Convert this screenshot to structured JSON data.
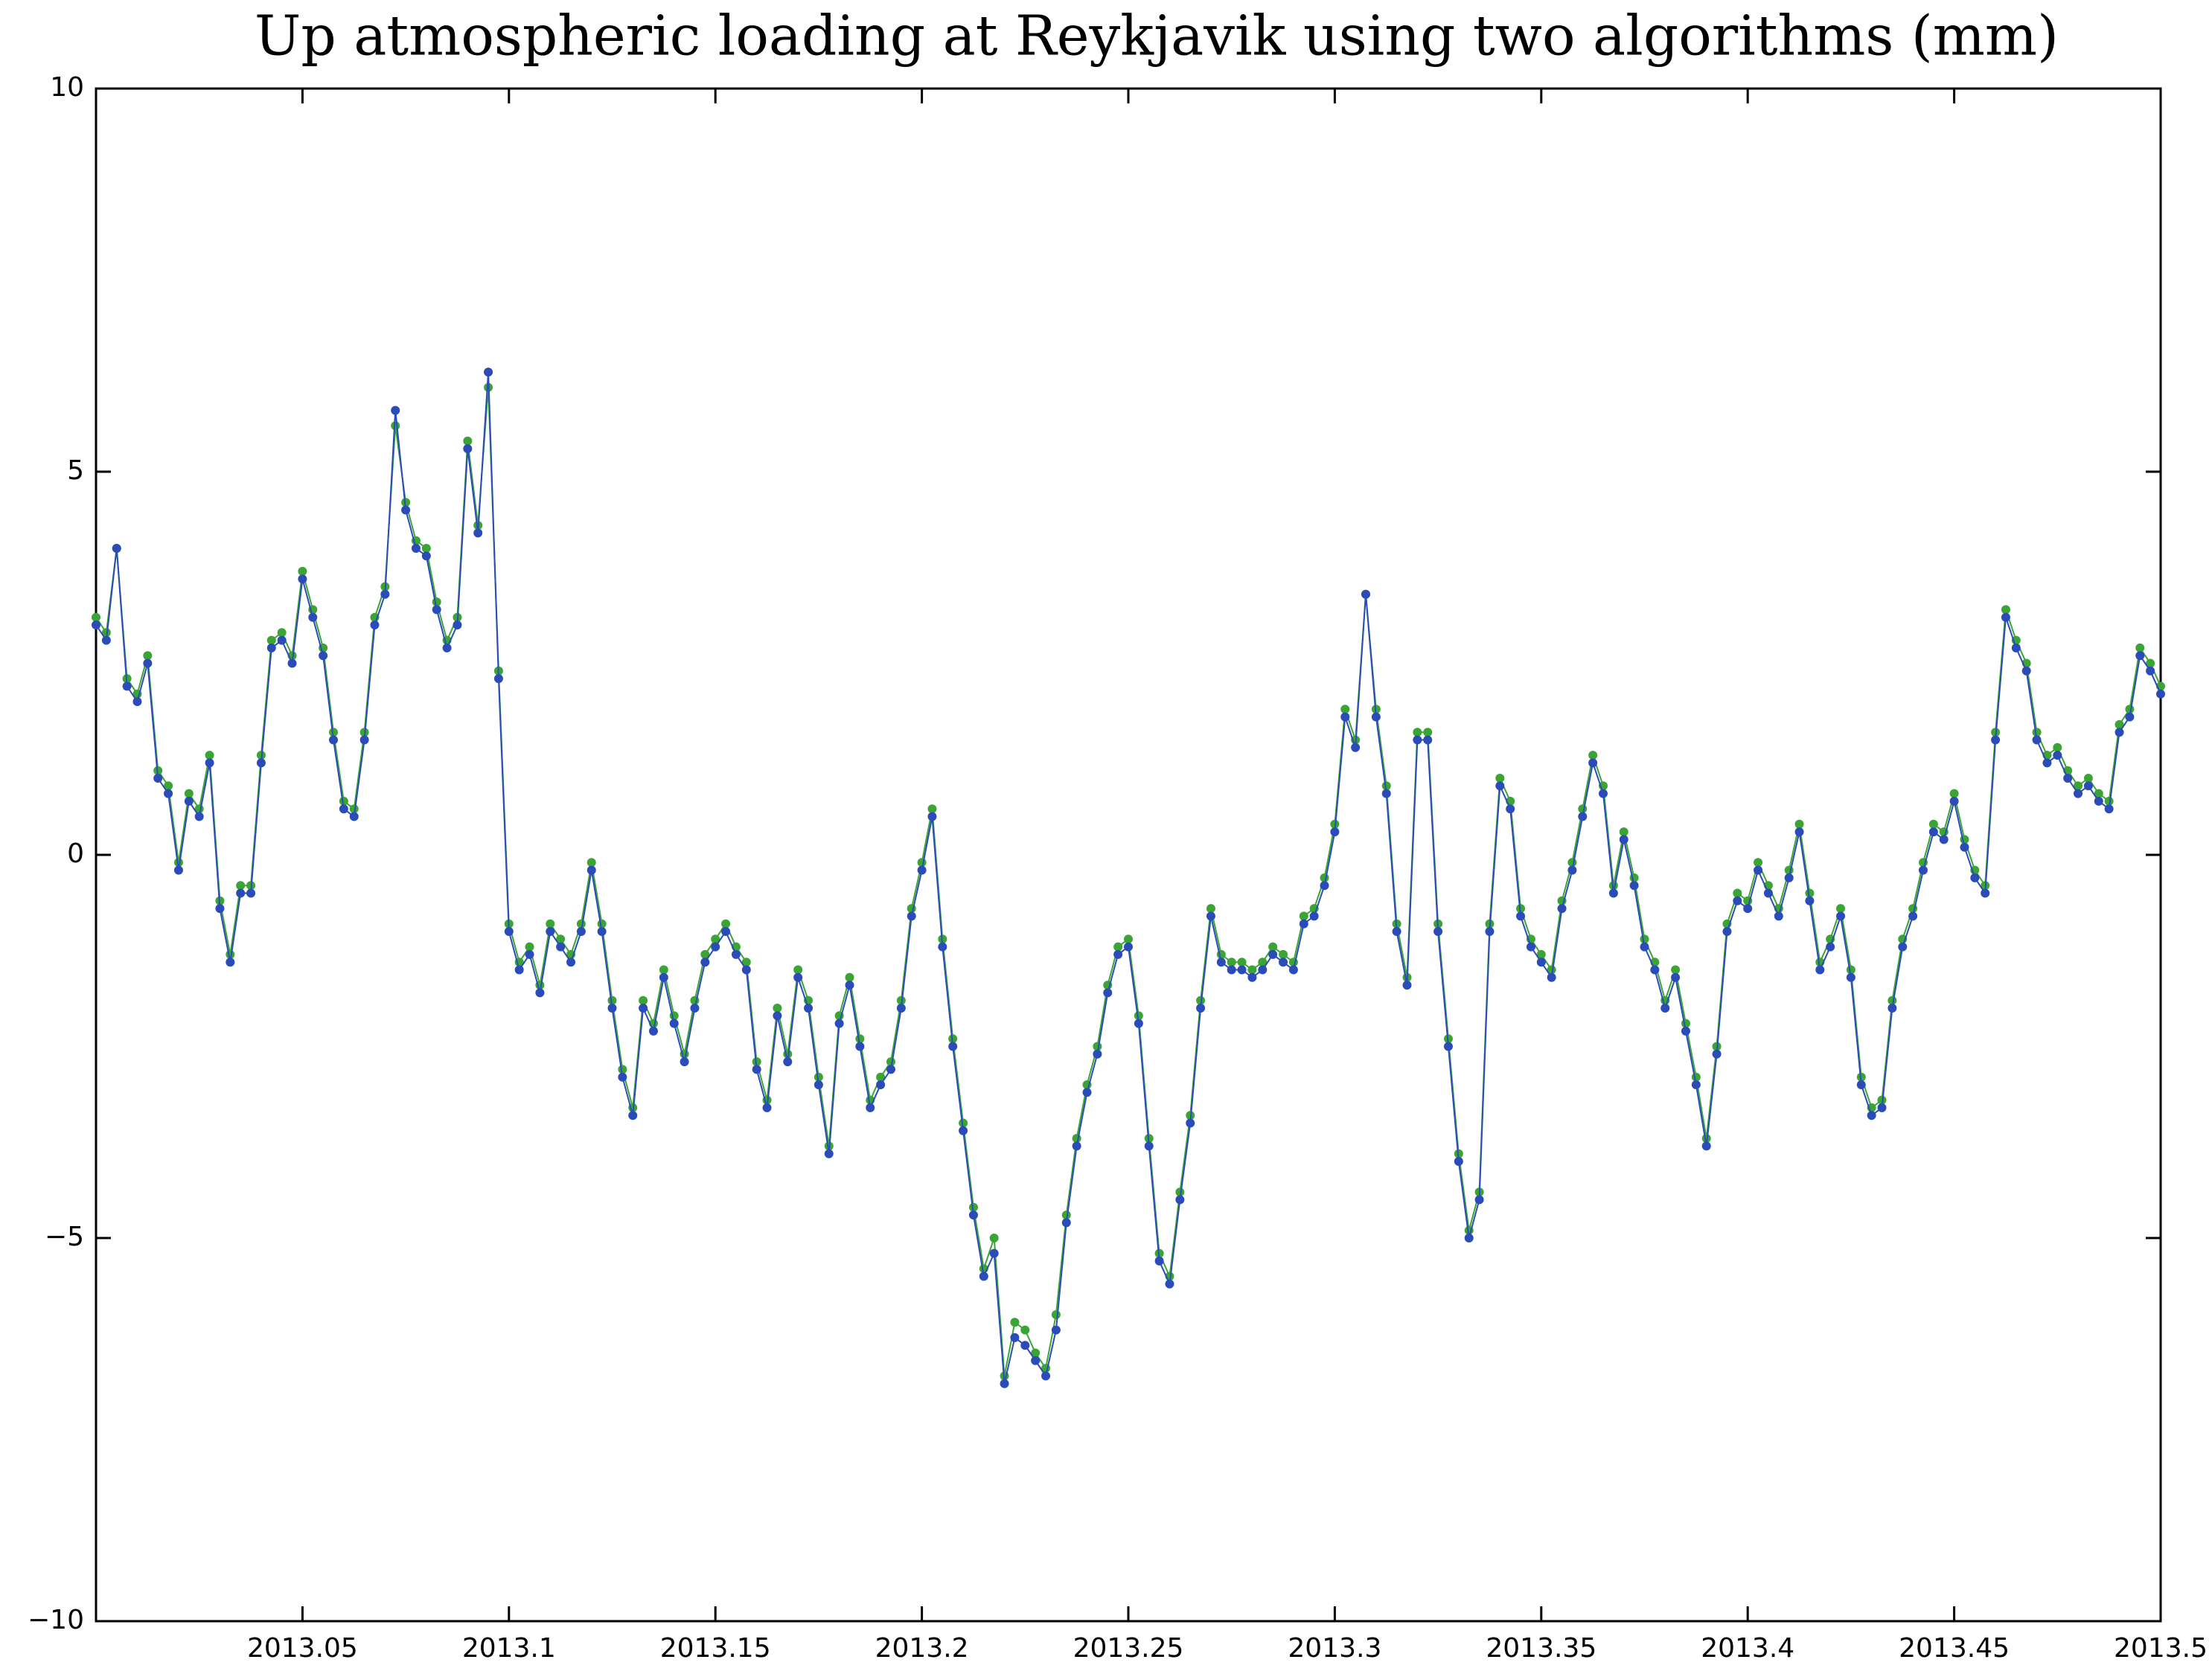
{
  "chart_data": {
    "type": "line",
    "title": "Up atmospheric loading at Reykjavik using two algorithms (mm)",
    "x": [
      2013,
      2013.0025,
      2013.005,
      2013.0075,
      2013.01,
      2013.0125,
      2013.015,
      2013.0175,
      2013.02,
      2013.0225,
      2013.025,
      2013.0275,
      2013.03,
      2013.0325,
      2013.035,
      2013.0375,
      2013.04,
      2013.0425,
      2013.045,
      2013.0475,
      2013.05,
      2013.0525,
      2013.055,
      2013.0575,
      2013.06,
      2013.0625,
      2013.065,
      2013.0675,
      2013.07,
      2013.0725,
      2013.075,
      2013.0775,
      2013.08,
      2013.0825,
      2013.085,
      2013.0875,
      2013.09,
      2013.0925,
      2013.095,
      2013.0975,
      2013.1,
      2013.1025,
      2013.105,
      2013.1075,
      2013.11,
      2013.1125,
      2013.115,
      2013.1175,
      2013.12,
      2013.1225,
      2013.125,
      2013.1275,
      2013.13,
      2013.1325,
      2013.135,
      2013.1375,
      2013.14,
      2013.1425,
      2013.145,
      2013.1475,
      2013.15,
      2013.1525,
      2013.155,
      2013.1575,
      2013.16,
      2013.1625,
      2013.165,
      2013.1675,
      2013.17,
      2013.1725,
      2013.175,
      2013.1775,
      2013.18,
      2013.1825,
      2013.185,
      2013.1875,
      2013.19,
      2013.1925,
      2013.195,
      2013.1975,
      2013.2,
      2013.2025,
      2013.205,
      2013.2075,
      2013.21,
      2013.2125,
      2013.215,
      2013.2175,
      2013.22,
      2013.2225,
      2013.225,
      2013.2275,
      2013.23,
      2013.2325,
      2013.235,
      2013.2375,
      2013.24,
      2013.2425,
      2013.245,
      2013.2475,
      2013.25,
      2013.2525,
      2013.255,
      2013.2575,
      2013.26,
      2013.2625,
      2013.265,
      2013.2675,
      2013.27,
      2013.2725,
      2013.275,
      2013.2775,
      2013.28,
      2013.2825,
      2013.285,
      2013.2875,
      2013.29,
      2013.2925,
      2013.295,
      2013.2975,
      2013.3,
      2013.3025,
      2013.305,
      2013.3075,
      2013.31,
      2013.3125,
      2013.315,
      2013.3175,
      2013.32,
      2013.3225,
      2013.325,
      2013.3275,
      2013.33,
      2013.3325,
      2013.335,
      2013.3375,
      2013.34,
      2013.3425,
      2013.345,
      2013.3475,
      2013.35,
      2013.3525,
      2013.355,
      2013.3575,
      2013.36,
      2013.3625,
      2013.365,
      2013.3675,
      2013.37,
      2013.3725,
      2013.375,
      2013.3775,
      2013.38,
      2013.3825,
      2013.385,
      2013.3875,
      2013.39,
      2013.3925,
      2013.395,
      2013.3975,
      2013.4,
      2013.4025,
      2013.405,
      2013.4075,
      2013.41,
      2013.4125,
      2013.415,
      2013.4175,
      2013.42,
      2013.4225,
      2013.425,
      2013.4275,
      2013.43,
      2013.4325,
      2013.435,
      2013.4375,
      2013.44,
      2013.4425,
      2013.445,
      2013.4475,
      2013.45,
      2013.4525,
      2013.455,
      2013.4575,
      2013.46,
      2013.4625,
      2013.465,
      2013.4675,
      2013.47,
      2013.4725,
      2013.475,
      2013.4775,
      2013.48,
      2013.4825,
      2013.485,
      2013.4875,
      2013.49,
      2013.4925,
      2013.495,
      2013.4975,
      2013.5
    ],
    "series": [
      {
        "color": "#3aa535",
        "values": [
          3.1,
          2.9,
          4.0,
          2.3,
          2.1,
          2.6,
          1.1,
          0.9,
          -0.1,
          0.8,
          0.6,
          1.3,
          -0.6,
          -1.3,
          -0.4,
          -0.4,
          1.3,
          2.8,
          2.9,
          2.6,
          3.7,
          3.2,
          2.7,
          1.6,
          0.7,
          0.6,
          1.6,
          3.1,
          3.5,
          5.6,
          4.6,
          4.1,
          4.0,
          3.3,
          2.8,
          3.1,
          5.4,
          4.3,
          6.1,
          2.4,
          -0.9,
          -1.4,
          -1.2,
          -1.7,
          -0.9,
          -1.1,
          -1.3,
          -0.9,
          -0.1,
          -0.9,
          -1.9,
          -2.8,
          -3.3,
          -1.9,
          -2.2,
          -1.5,
          -2.1,
          -2.6,
          -1.9,
          -1.3,
          -1.1,
          -0.9,
          -1.2,
          -1.4,
          -2.7,
          -3.2,
          -2.0,
          -2.6,
          -1.5,
          -1.9,
          -2.9,
          -3.8,
          -2.1,
          -1.6,
          -2.4,
          -3.2,
          -2.9,
          -2.7,
          -1.9,
          -0.7,
          -0.1,
          0.6,
          -1.1,
          -2.4,
          -3.5,
          -4.6,
          -5.4,
          -5.0,
          -6.8,
          -6.1,
          -6.2,
          -6.5,
          -6.7,
          -6.0,
          -4.7,
          -3.7,
          -3.0,
          -2.5,
          -1.7,
          -1.2,
          -1.1,
          -2.1,
          -3.7,
          -5.2,
          -5.5,
          -4.4,
          -3.4,
          -1.9,
          -0.7,
          -1.3,
          -1.4,
          -1.4,
          -1.5,
          -1.4,
          -1.2,
          -1.3,
          -1.4,
          -0.8,
          -0.7,
          -0.3,
          0.4,
          1.9,
          1.5,
          3.4,
          1.9,
          0.9,
          -0.9,
          -1.6,
          1.6,
          1.6,
          -0.9,
          -2.4,
          -3.9,
          -4.9,
          -4.4,
          -0.9,
          1.0,
          0.7,
          -0.7,
          -1.1,
          -1.3,
          -1.5,
          -0.6,
          -0.1,
          0.6,
          1.3,
          0.9,
          -0.4,
          0.3,
          -0.3,
          -1.1,
          -1.4,
          -1.9,
          -1.5,
          -2.2,
          -2.9,
          -3.7,
          -2.5,
          -0.9,
          -0.5,
          -0.6,
          -0.1,
          -0.4,
          -0.7,
          -0.2,
          0.4,
          -0.5,
          -1.4,
          -1.1,
          -0.7,
          -1.5,
          -2.9,
          -3.3,
          -3.2,
          -1.9,
          -1.1,
          -0.7,
          -0.1,
          0.4,
          0.3,
          0.8,
          0.2,
          -0.2,
          -0.4,
          1.6,
          3.2,
          2.8,
          2.5,
          1.6,
          1.3,
          1.4,
          1.1,
          0.9,
          1.0,
          0.8,
          0.7,
          1.7,
          1.9,
          2.7,
          2.5,
          2.2
        ]
      },
      {
        "color": "#2b4bb8",
        "values": [
          3.0,
          2.8,
          4.0,
          2.2,
          2.0,
          2.5,
          1.0,
          0.8,
          -0.2,
          0.7,
          0.5,
          1.2,
          -0.7,
          -1.4,
          -0.5,
          -0.5,
          1.2,
          2.7,
          2.8,
          2.5,
          3.6,
          3.1,
          2.6,
          1.5,
          0.6,
          0.5,
          1.5,
          3.0,
          3.4,
          5.8,
          4.5,
          4.0,
          3.9,
          3.2,
          2.7,
          3.0,
          5.3,
          4.2,
          6.3,
          2.3,
          -1.0,
          -1.5,
          -1.3,
          -1.8,
          -1.0,
          -1.2,
          -1.4,
          -1.0,
          -0.2,
          -1.0,
          -2.0,
          -2.9,
          -3.4,
          -2.0,
          -2.3,
          -1.6,
          -2.2,
          -2.7,
          -2.0,
          -1.4,
          -1.2,
          -1.0,
          -1.3,
          -1.5,
          -2.8,
          -3.3,
          -2.1,
          -2.7,
          -1.6,
          -2.0,
          -3.0,
          -3.9,
          -2.2,
          -1.7,
          -2.5,
          -3.3,
          -3.0,
          -2.8,
          -2.0,
          -0.8,
          -0.2,
          0.5,
          -1.2,
          -2.5,
          -3.6,
          -4.7,
          -5.5,
          -5.2,
          -6.9,
          -6.3,
          -6.4,
          -6.6,
          -6.8,
          -6.2,
          -4.8,
          -3.8,
          -3.1,
          -2.6,
          -1.8,
          -1.3,
          -1.2,
          -2.2,
          -3.8,
          -5.3,
          -5.6,
          -4.5,
          -3.5,
          -2.0,
          -0.8,
          -1.4,
          -1.5,
          -1.5,
          -1.6,
          -1.5,
          -1.3,
          -1.4,
          -1.5,
          -0.9,
          -0.8,
          -0.4,
          0.3,
          1.8,
          1.4,
          3.4,
          1.8,
          0.8,
          -1.0,
          -1.7,
          1.5,
          1.5,
          -1.0,
          -2.5,
          -4.0,
          -5.0,
          -4.5,
          -1.0,
          0.9,
          0.6,
          -0.8,
          -1.2,
          -1.4,
          -1.6,
          -0.7,
          -0.2,
          0.5,
          1.2,
          0.8,
          -0.5,
          0.2,
          -0.4,
          -1.2,
          -1.5,
          -2.0,
          -1.6,
          -2.3,
          -3.0,
          -3.8,
          -2.6,
          -1.0,
          -0.6,
          -0.7,
          -0.2,
          -0.5,
          -0.8,
          -0.3,
          0.3,
          -0.6,
          -1.5,
          -1.2,
          -0.8,
          -1.6,
          -3.0,
          -3.4,
          -3.3,
          -2.0,
          -1.2,
          -0.8,
          -0.2,
          0.3,
          0.2,
          0.7,
          0.1,
          -0.3,
          -0.5,
          1.5,
          3.1,
          2.7,
          2.4,
          1.5,
          1.2,
          1.3,
          1.0,
          0.8,
          0.9,
          0.7,
          0.6,
          1.6,
          1.8,
          2.6,
          2.4,
          2.1
        ]
      }
    ],
    "xlim": [
      2013,
      2013.5
    ],
    "xticks": [
      2013.05,
      2013.1,
      2013.15,
      2013.2,
      2013.25,
      2013.3,
      2013.35,
      2013.4,
      2013.45,
      2013.5
    ],
    "ylim": [
      -10,
      10
    ],
    "yticks": [
      {
        "value": -10,
        "label": "−10"
      },
      {
        "value": -5,
        "label": "−5"
      },
      0,
      5,
      10
    ],
    "markers": true
  }
}
